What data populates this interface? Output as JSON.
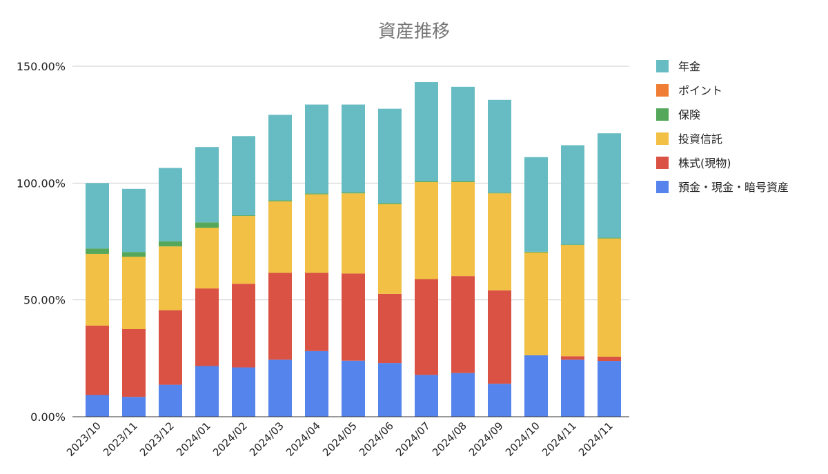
{
  "chart_data": {
    "type": "bar",
    "stacked": true,
    "title": "資産推移",
    "xlabel": "",
    "ylabel": "",
    "ylim": [
      0,
      150
    ],
    "y_ticks": [
      "0.00%",
      "50.00%",
      "100.00%",
      "150.00%"
    ],
    "grid": true,
    "legend_position": "right",
    "categories": [
      "2023/10",
      "2023/11",
      "2023/12",
      "2024/01",
      "2024/02",
      "2024/03",
      "2024/04",
      "2024/05",
      "2024/06",
      "2024/07",
      "2024/08",
      "2024/09",
      "2024/10",
      "2024/11",
      "2024/11"
    ],
    "series": [
      {
        "name": "預金・現金・暗号資産",
        "color": "#5584ec",
        "values": [
          9.3,
          8.5,
          13.7,
          21.7,
          21.1,
          24.4,
          28.1,
          24.0,
          23.0,
          17.9,
          18.7,
          14.1,
          26.3,
          24.4,
          23.9
        ]
      },
      {
        "name": "株式(現物)",
        "color": "#da5243",
        "values": [
          29.7,
          29.0,
          31.9,
          33.2,
          35.8,
          37.2,
          33.5,
          37.3,
          29.6,
          41.0,
          41.5,
          40.0,
          0.0,
          1.5,
          1.8
        ]
      },
      {
        "name": "投資信託",
        "color": "#f1c044",
        "values": [
          30.7,
          31.0,
          27.3,
          26.0,
          29.0,
          30.6,
          33.6,
          34.3,
          38.4,
          41.5,
          40.2,
          41.5,
          44.0,
          47.6,
          50.6
        ]
      },
      {
        "name": "保険",
        "color": "#55a75b",
        "values": [
          2.3,
          2.0,
          2.2,
          2.3,
          0.3,
          0.4,
          0.4,
          0.4,
          0.4,
          0.4,
          0.4,
          0.3,
          0.3,
          0.2,
          0.3
        ]
      },
      {
        "name": "ポイント",
        "color": "#ef7d33",
        "values": [
          0,
          0,
          0,
          0,
          0,
          0,
          0,
          0,
          0,
          0,
          0,
          0,
          0,
          0,
          0
        ]
      },
      {
        "name": "年金",
        "color": "#67bcc3",
        "values": [
          28.0,
          27.0,
          31.4,
          32.2,
          33.9,
          36.6,
          38.0,
          37.6,
          40.4,
          42.4,
          40.4,
          39.7,
          40.5,
          42.5,
          44.7
        ]
      }
    ],
    "legend_order": [
      "年金",
      "ポイント",
      "保険",
      "投資信託",
      "株式(現物)",
      "預金・現金・暗号資産"
    ]
  }
}
